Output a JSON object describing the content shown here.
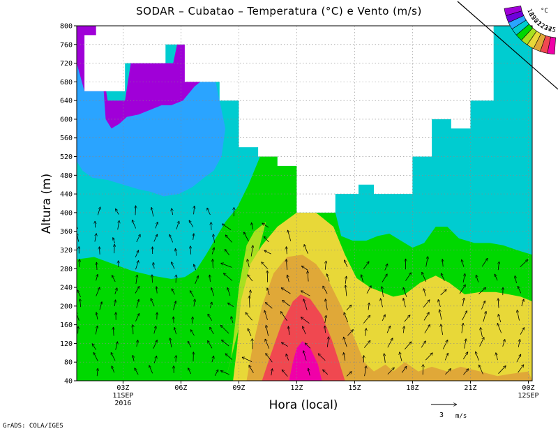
{
  "chart_data": {
    "type": "contour",
    "title": "SODAR – Cubatao – Temperatura (°C) e Vento (m/s)",
    "xlabel": "Hora (local)",
    "ylabel": "Altura (m)",
    "x_ticks": [
      "03Z",
      "06Z",
      "09Z",
      "12Z",
      "15Z",
      "18Z",
      "21Z",
      "00Z"
    ],
    "x_ticks_hours": [
      3,
      6,
      9,
      12,
      15,
      18,
      21,
      24
    ],
    "x_date_labels": [
      {
        "at_hour": 3,
        "lines": [
          "11SEP",
          "2016"
        ]
      },
      {
        "at_hour": 24,
        "lines": [
          "12SEP"
        ]
      }
    ],
    "xlim_hours": [
      0.6,
      24.2
    ],
    "y_ticks": [
      40,
      80,
      120,
      160,
      200,
      240,
      280,
      320,
      360,
      400,
      440,
      480,
      520,
      560,
      600,
      640,
      680,
      720,
      760,
      800
    ],
    "ylim": [
      40,
      800
    ],
    "grid": true,
    "legend_levels": [
      "18",
      "19",
      "20",
      "21",
      "22",
      "23",
      "24",
      "25"
    ],
    "legend_unit": "°C",
    "legend_placement": "top-right",
    "colors": {
      "lt18": "#a000d8",
      "18_19": "#6e00dc",
      "19_20": "#2aa4ff",
      "20_21": "#00ccd0",
      "21_22": "#00d800",
      "22_23": "#a8e020",
      "23_24": "#e8d838",
      "24_25": "#e0a838",
      "25_26": "#f04850",
      "gt26": "#f000a8"
    },
    "temperature_bands": [
      {
        "range": ">26",
        "color_key": "gt26",
        "polygon_hour_alt": [
          [
            11.6,
            40
          ],
          [
            11.8,
            80
          ],
          [
            12.0,
            110
          ],
          [
            12.3,
            125
          ],
          [
            12.7,
            110
          ],
          [
            13.1,
            75
          ],
          [
            13.3,
            40
          ]
        ]
      },
      {
        "range": "25-26",
        "color_key": "25_26",
        "polygon_hour_alt": [
          [
            10.2,
            40
          ],
          [
            10.6,
            90
          ],
          [
            11.2,
            160
          ],
          [
            11.8,
            210
          ],
          [
            12.2,
            225
          ],
          [
            12.7,
            215
          ],
          [
            13.3,
            180
          ],
          [
            13.8,
            130
          ],
          [
            14.2,
            80
          ],
          [
            14.5,
            40
          ]
        ]
      },
      {
        "range": "24-25",
        "color_key": "24_25",
        "polygon_hour_alt": [
          [
            9.4,
            40
          ],
          [
            9.7,
            110
          ],
          [
            10.2,
            200
          ],
          [
            10.8,
            270
          ],
          [
            11.5,
            305
          ],
          [
            12.3,
            310
          ],
          [
            13.0,
            290
          ],
          [
            13.7,
            250
          ],
          [
            14.3,
            200
          ],
          [
            15.0,
            130
          ],
          [
            15.5,
            80
          ],
          [
            16.0,
            60
          ],
          [
            16.6,
            75
          ],
          [
            17.0,
            60
          ],
          [
            17.6,
            80
          ],
          [
            18.3,
            60
          ],
          [
            19.0,
            70
          ],
          [
            19.8,
            60
          ],
          [
            20.5,
            70
          ],
          [
            21.5,
            60
          ],
          [
            22.4,
            50
          ],
          [
            23.1,
            55
          ],
          [
            24.0,
            60
          ],
          [
            24.2,
            40
          ]
        ]
      },
      {
        "range": "23-24",
        "color_key": "23_24",
        "polygon_hour_alt": [
          [
            8.7,
            40
          ],
          [
            8.9,
            110
          ],
          [
            9.1,
            210
          ],
          [
            9.6,
            290
          ],
          [
            10.2,
            330
          ],
          [
            11.0,
            370
          ],
          [
            12.0,
            400
          ],
          [
            13.0,
            400
          ],
          [
            13.9,
            370
          ],
          [
            14.5,
            310
          ],
          [
            15.1,
            260
          ],
          [
            15.8,
            240
          ],
          [
            16.4,
            230
          ],
          [
            17.0,
            220
          ],
          [
            17.6,
            225
          ],
          [
            18.4,
            250
          ],
          [
            19.2,
            265
          ],
          [
            19.9,
            250
          ],
          [
            20.7,
            225
          ],
          [
            21.5,
            230
          ],
          [
            22.3,
            230
          ],
          [
            23.0,
            225
          ],
          [
            23.6,
            220
          ],
          [
            24.2,
            210
          ],
          [
            24.2,
            40
          ]
        ]
      },
      {
        "range": "22-23",
        "color_key": "22_23",
        "polygon_hour_alt": [
          [
            8.3,
            40
          ],
          [
            8.6,
            90
          ],
          [
            8.8,
            160
          ],
          [
            9.0,
            240
          ],
          [
            9.4,
            330
          ],
          [
            9.8,
            360
          ],
          [
            10.4,
            380
          ]
        ]
      },
      {
        "range": "21-22",
        "color_key": "21_22",
        "polygon_hour_alt": [
          [
            0.6,
            40
          ],
          [
            0.6,
            300
          ],
          [
            1.5,
            305
          ],
          [
            2.5,
            290
          ],
          [
            3.5,
            275
          ],
          [
            4.5,
            265
          ],
          [
            5.5,
            258
          ],
          [
            6.2,
            262
          ],
          [
            6.8,
            278
          ],
          [
            7.3,
            310
          ],
          [
            7.8,
            345
          ],
          [
            8.3,
            380
          ],
          [
            8.9,
            410
          ],
          [
            9.5,
            460
          ],
          [
            10.1,
            520
          ],
          [
            11.0,
            520
          ],
          [
            11.0,
            500
          ],
          [
            12.0,
            500
          ],
          [
            12.0,
            400
          ],
          [
            14.0,
            400
          ],
          [
            14.3,
            350
          ],
          [
            14.9,
            340
          ],
          [
            15.6,
            340
          ],
          [
            16.2,
            350
          ],
          [
            16.8,
            355
          ],
          [
            17.4,
            340
          ],
          [
            18.0,
            325
          ],
          [
            18.6,
            335
          ],
          [
            19.2,
            370
          ],
          [
            19.8,
            370
          ],
          [
            20.4,
            345
          ],
          [
            21.2,
            335
          ],
          [
            22.0,
            335
          ],
          [
            22.7,
            330
          ],
          [
            23.4,
            320
          ],
          [
            24.2,
            310
          ],
          [
            24.2,
            40
          ]
        ]
      },
      {
        "range": "20-21",
        "color_key": "20_21",
        "polygon_hour_alt": [
          [
            0.6,
            800
          ],
          [
            24.2,
            800
          ],
          [
            24.2,
            40
          ],
          [
            0.6,
            40
          ]
        ]
      },
      {
        "range": "19-20",
        "color_key": "19_20",
        "polygon_hour_alt": [
          [
            0.6,
            720
          ],
          [
            1.0,
            660
          ],
          [
            2.0,
            660
          ],
          [
            2.2,
            640
          ],
          [
            3.1,
            640
          ],
          [
            3.4,
            720
          ],
          [
            5.6,
            720
          ],
          [
            5.8,
            760
          ],
          [
            6.7,
            760
          ],
          [
            6.8,
            680
          ],
          [
            7.8,
            680
          ],
          [
            8.0,
            640
          ],
          [
            8.3,
            580
          ],
          [
            8.1,
            520
          ],
          [
            7.7,
            490
          ],
          [
            7.2,
            475
          ],
          [
            6.6,
            455
          ],
          [
            5.9,
            440
          ],
          [
            5.1,
            435
          ],
          [
            4.4,
            445
          ],
          [
            3.8,
            450
          ],
          [
            3.0,
            460
          ],
          [
            2.2,
            470
          ],
          [
            1.4,
            475
          ],
          [
            0.9,
            490
          ],
          [
            0.6,
            510
          ]
        ]
      },
      {
        "range": "18-19",
        "color_key": "lt18",
        "polygon_hour_alt": [
          [
            0.6,
            800
          ],
          [
            0.6,
            720
          ],
          [
            1.0,
            660
          ],
          [
            2.0,
            660
          ],
          [
            2.1,
            600
          ],
          [
            2.4,
            580
          ],
          [
            2.8,
            590
          ],
          [
            3.2,
            605
          ],
          [
            3.8,
            610
          ],
          [
            4.4,
            620
          ],
          [
            5.0,
            630
          ],
          [
            5.5,
            630
          ],
          [
            6.1,
            640
          ],
          [
            6.7,
            670
          ],
          [
            7.0,
            680
          ],
          [
            6.8,
            760
          ],
          [
            5.8,
            760
          ],
          [
            5.6,
            720
          ],
          [
            3.4,
            720
          ],
          [
            3.1,
            640
          ],
          [
            2.2,
            640
          ],
          [
            1.6,
            800
          ]
        ]
      }
    ],
    "no_data_mask_hour_alt": [
      [
        0.6,
        800
      ],
      [
        1.6,
        800
      ],
      [
        1.6,
        780
      ],
      [
        1.0,
        780
      ],
      [
        1.0,
        660
      ],
      [
        3.1,
        660
      ],
      [
        3.1,
        720
      ],
      [
        5.2,
        720
      ],
      [
        5.2,
        760
      ],
      [
        6.2,
        760
      ],
      [
        6.2,
        680
      ],
      [
        8.0,
        680
      ],
      [
        8.0,
        640
      ],
      [
        9.0,
        640
      ],
      [
        9.0,
        540
      ],
      [
        10.0,
        540
      ],
      [
        10.0,
        520
      ],
      [
        11.0,
        520
      ],
      [
        11.0,
        500
      ],
      [
        12.0,
        500
      ],
      [
        12.0,
        400
      ],
      [
        14.0,
        400
      ],
      [
        14.0,
        440
      ],
      [
        15.2,
        440
      ],
      [
        15.2,
        460
      ],
      [
        16.0,
        460
      ],
      [
        16.0,
        440
      ],
      [
        18.0,
        440
      ],
      [
        18.0,
        520
      ],
      [
        19.0,
        520
      ],
      [
        19.0,
        600
      ],
      [
        20.0,
        600
      ],
      [
        20.0,
        580
      ],
      [
        21.0,
        580
      ],
      [
        21.0,
        640
      ],
      [
        22.2,
        640
      ],
      [
        22.2,
        800
      ],
      [
        24.2,
        800
      ]
    ],
    "wind_region_hour_alt": [
      [
        0.6,
        40
      ],
      [
        0.6,
        400
      ],
      [
        8.3,
        400
      ],
      [
        10.0,
        380
      ],
      [
        11.5,
        360
      ],
      [
        14.0,
        300
      ],
      [
        18.0,
        300
      ],
      [
        24.2,
        300
      ],
      [
        24.2,
        40
      ]
    ],
    "wind_unit": "m/s",
    "reference_vector": {
      "label": "3",
      "unit": "m/s",
      "speed_ms": 3
    }
  },
  "footer": {
    "credit": "GrADS: COLA/IGES"
  }
}
